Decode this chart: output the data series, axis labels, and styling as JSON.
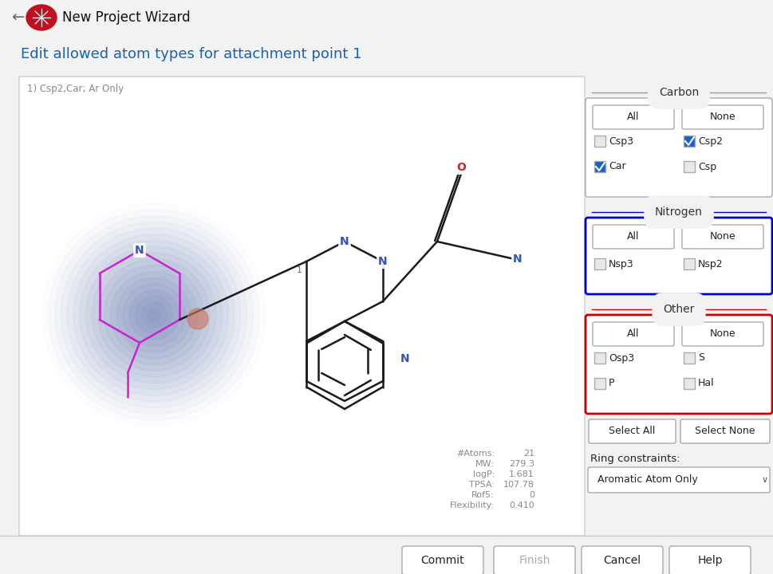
{
  "title": "New Project Wizard",
  "subtitle": "Edit allowed atom types for attachment point 1",
  "subtitle_color": "#1a5fb4",
  "bg_color": "#f2f2f2",
  "panel_bg": "#ffffff",
  "top_label": "1) Csp2,Car; Ar Only",
  "stats_labels": [
    "#Atoms:",
    "MW:",
    "logP:",
    "TPSA:",
    "Rof5:",
    "Flexibility:"
  ],
  "stats_values": [
    "21",
    "279.3",
    "1.681",
    "107.78",
    "0",
    "0.410"
  ],
  "carbon_label": "Carbon",
  "carbon_border": "#aaaaaa",
  "nitrogen_label": "Nitrogen",
  "nitrogen_border": "#0000cc",
  "other_label": "Other",
  "other_border": "#cc0000",
  "carbon_checkboxes": [
    {
      "label": "Csp3",
      "checked": false
    },
    {
      "label": "Csp2",
      "checked": true
    },
    {
      "label": "Car",
      "checked": true
    },
    {
      "label": "Csp",
      "checked": false
    }
  ],
  "nitrogen_checkboxes": [
    {
      "label": "Nsp3",
      "checked": false
    },
    {
      "label": "Nsp2",
      "checked": false
    }
  ],
  "other_checkboxes": [
    {
      "label": "Osp3",
      "checked": false
    },
    {
      "label": "S",
      "checked": false
    },
    {
      "label": "P",
      "checked": false
    },
    {
      "label": "Hal",
      "checked": false
    }
  ],
  "ring_constraint": "Aromatic Atom Only",
  "bottom_buttons": [
    "Commit",
    "Finish",
    "Cancel",
    "Help"
  ],
  "bottom_enabled": [
    true,
    false,
    true,
    true
  ],
  "bond_color": "#1a1a1a",
  "pink_color": "#cc22cc",
  "N_color": "#3355bb",
  "O_color": "#cc2222",
  "check_color": "#1a60c8"
}
